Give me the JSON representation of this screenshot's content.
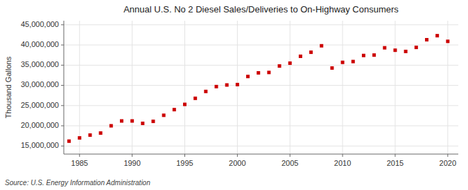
{
  "chart_data": {
    "type": "scatter",
    "title": "Annual U.S. No 2 Diesel Sales/Deliveries to On-Highway Consumers",
    "ylabel": "Thousand Gallons",
    "source": "Source: U.S. Energy Information Administration",
    "color": "#cc0000",
    "marker": "square",
    "grid": true,
    "x": [
      1984,
      1985,
      1986,
      1987,
      1988,
      1989,
      1990,
      1991,
      1992,
      1993,
      1994,
      1995,
      1996,
      1997,
      1998,
      1999,
      2000,
      2001,
      2002,
      2003,
      2004,
      2005,
      2006,
      2007,
      2008,
      2009,
      2010,
      2011,
      2012,
      2013,
      2014,
      2015,
      2016,
      2017,
      2018,
      2019,
      2020
    ],
    "values": [
      16200000,
      17000000,
      17700000,
      18200000,
      20000000,
      21200000,
      21200000,
      20600000,
      21100000,
      22600000,
      24000000,
      25300000,
      26800000,
      28500000,
      29700000,
      30100000,
      30200000,
      32200000,
      33100000,
      33200000,
      34800000,
      35500000,
      37200000,
      38200000,
      39800000,
      34300000,
      35700000,
      35900000,
      37400000,
      37500000,
      39300000,
      38700000,
      38400000,
      39400000,
      41300000,
      42300000,
      40900000
    ],
    "xlim": [
      1983.5,
      2021
    ],
    "ylim": [
      13000000,
      46000000
    ],
    "xticks": [
      1985,
      1990,
      1995,
      2000,
      2005,
      2010,
      2015,
      2020
    ],
    "yticks": [
      {
        "value": 15000000,
        "label": "15,000,000"
      },
      {
        "value": 20000000,
        "label": "20,000,000"
      },
      {
        "value": 25000000,
        "label": "25,000,000"
      },
      {
        "value": 30000000,
        "label": "30,000,000"
      },
      {
        "value": 35000000,
        "label": "35,000,000"
      },
      {
        "value": 40000000,
        "label": "40,000,000"
      },
      {
        "value": 45000000,
        "label": "45,000,000"
      }
    ]
  }
}
